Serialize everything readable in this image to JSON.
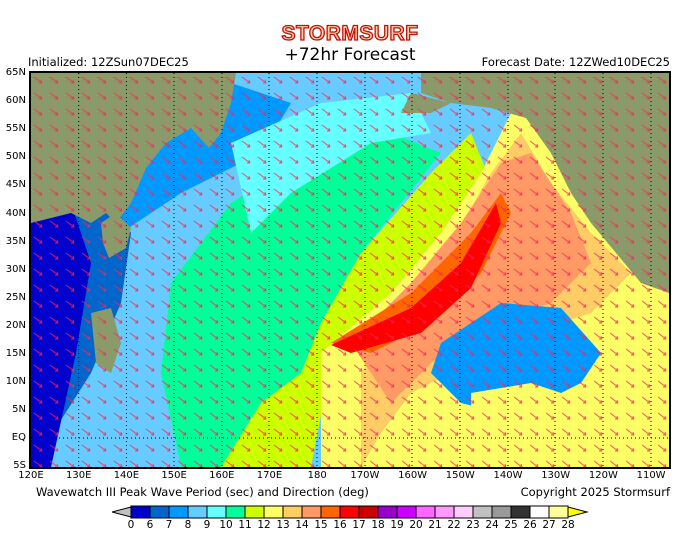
{
  "header": {
    "brand": "STORMSURF",
    "title": "+72hr Forecast",
    "initialized": "Initialized: 12ZSun07DEC25",
    "forecast_date": "Forecast Date: 12ZWed10DEC25"
  },
  "axes": {
    "lat_labels": [
      "65N",
      "60N",
      "55N",
      "50N",
      "45N",
      "40N",
      "35N",
      "30N",
      "25N",
      "20N",
      "15N",
      "10N",
      "5N",
      "EQ",
      "5S"
    ],
    "lon_labels": [
      "120E",
      "130E",
      "140E",
      "150E",
      "160E",
      "170E",
      "180",
      "170W",
      "160W",
      "150W",
      "140W",
      "130W",
      "120W",
      "110W"
    ]
  },
  "footer": {
    "description": "Wavewatch III Peak Wave Period (sec) and Direction (deg)",
    "copyright": "Copyright 2025 Stormsurf"
  },
  "colorbar": {
    "labels": [
      "0",
      "6",
      "7",
      "8",
      "9",
      "10",
      "11",
      "12",
      "13",
      "14",
      "15",
      "16",
      "17",
      "18",
      "19",
      "20",
      "21",
      "22",
      "23",
      "24",
      "25",
      "26",
      "27",
      "28"
    ],
    "colors": [
      "#0000cc",
      "#0066cc",
      "#0099ff",
      "#66ccff",
      "#66ffff",
      "#00ff99",
      "#ccff00",
      "#ffff66",
      "#ffcc66",
      "#ff9966",
      "#ff6600",
      "#ff0000",
      "#cc0000",
      "#9900cc",
      "#cc00ff",
      "#ff66ff",
      "#ff99ff",
      "#ffccff",
      "#c0c0c0",
      "#999999",
      "#333333",
      "#ffffff",
      "#ffff99"
    ],
    "under_color": "#c0c0c0",
    "over_color": "#ffff00"
  }
}
